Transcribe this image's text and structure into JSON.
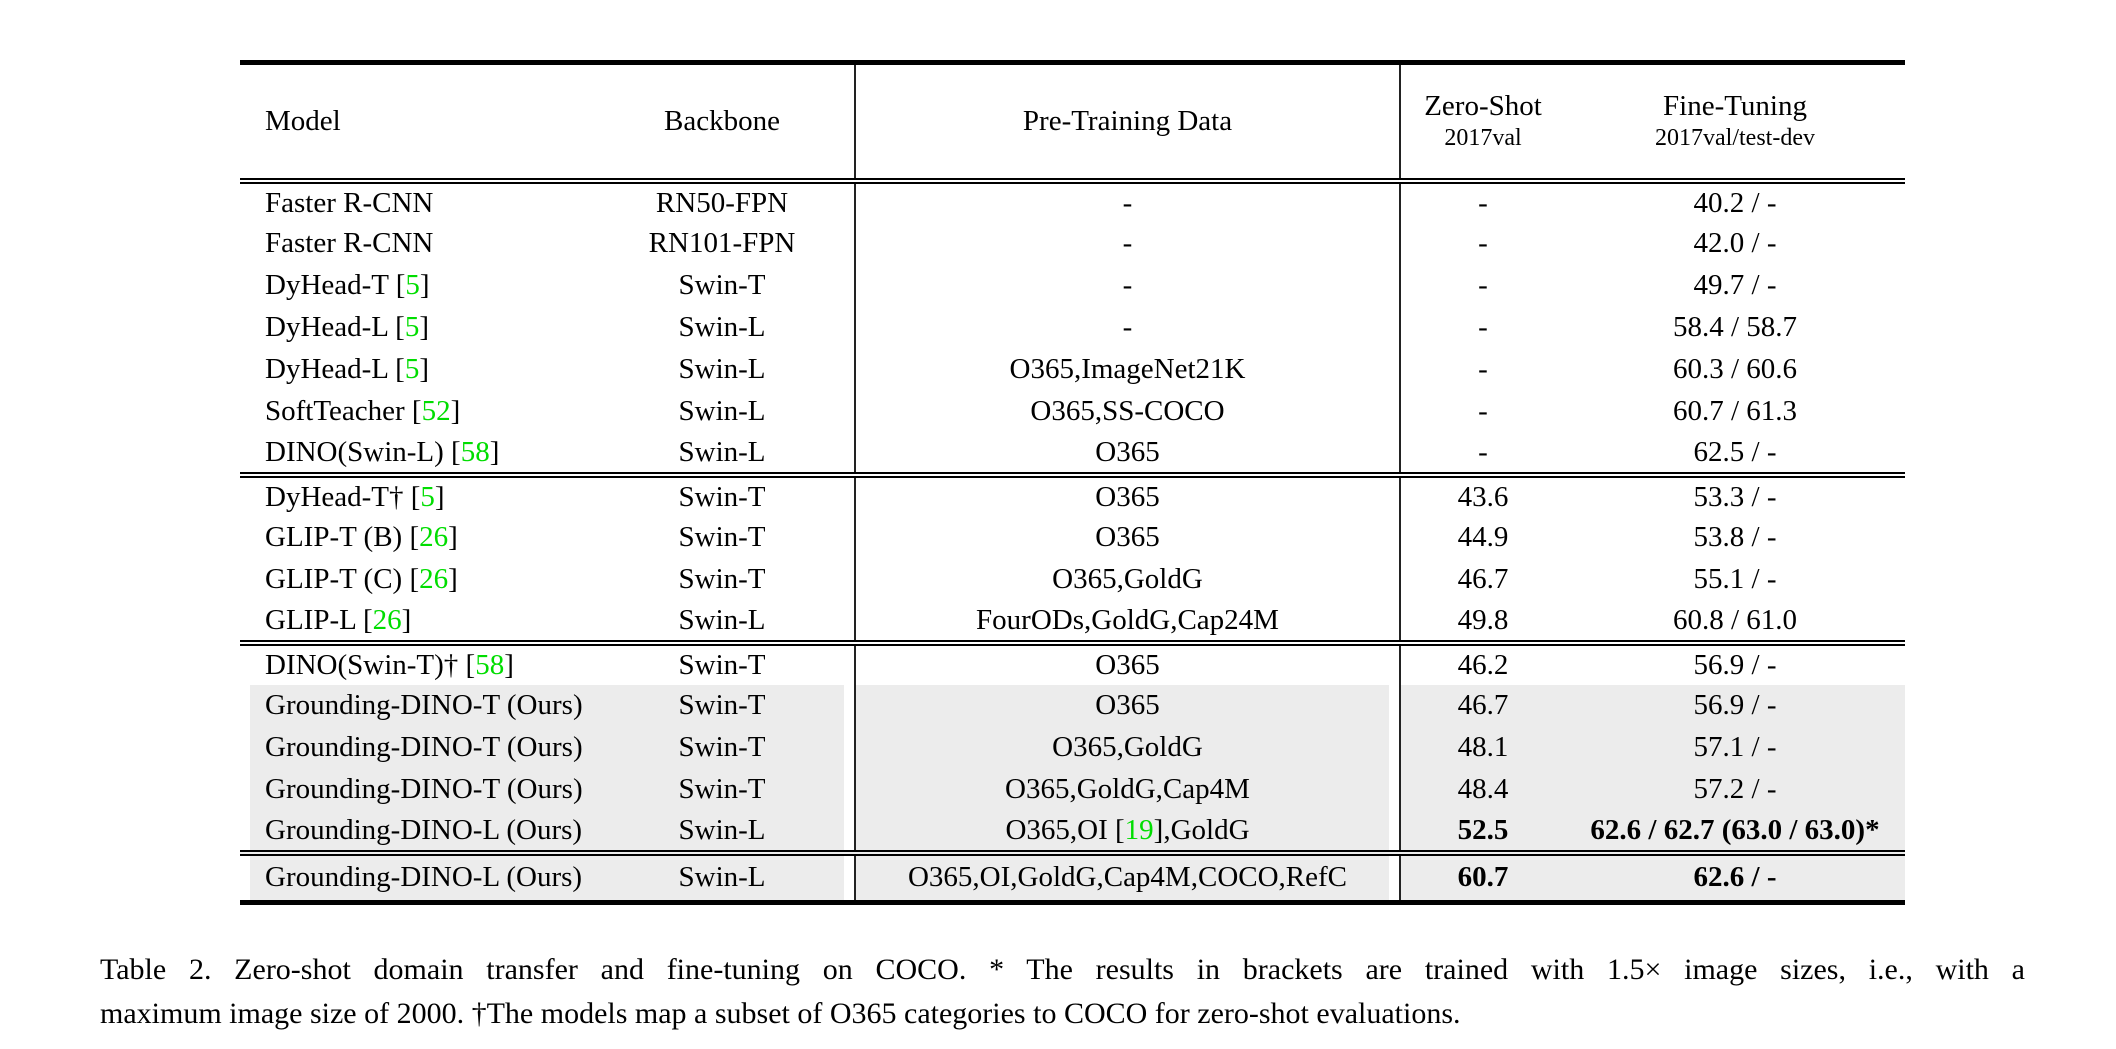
{
  "colors": {
    "citation_green": "#00dd00",
    "row_highlight": "#ececec",
    "rule_black": "#000000"
  },
  "table": {
    "headers": {
      "model": "Model",
      "backbone": "Backbone",
      "pretraining": "Pre-Training Data",
      "zeroshot_title": "Zero-Shot",
      "zeroshot_sub": "2017val",
      "finetuning_title": "Fine-Tuning",
      "finetuning_sub": "2017val/test-dev"
    },
    "groups": [
      {
        "rows": [
          {
            "model": "Faster R-CNN",
            "backbone": "RN50-FPN",
            "pretrain": "-",
            "zs": "-",
            "ft": "40.2 / -",
            "hl": false,
            "zs_bold": false,
            "ft_bold": false
          },
          {
            "model": "Faster R-CNN",
            "backbone": "RN101-FPN",
            "pretrain": "-",
            "zs": "-",
            "ft": "42.0 / -",
            "hl": false,
            "zs_bold": false,
            "ft_bold": false
          },
          {
            "model": "DyHead-T [[5]]",
            "backbone": "Swin-T",
            "pretrain": "-",
            "zs": "-",
            "ft": "49.7 / -",
            "hl": false,
            "zs_bold": false,
            "ft_bold": false
          },
          {
            "model": "DyHead-L [[5]]",
            "backbone": "Swin-L",
            "pretrain": "-",
            "zs": "-",
            "ft": "58.4 / 58.7",
            "hl": false,
            "zs_bold": false,
            "ft_bold": false
          },
          {
            "model": "DyHead-L [[5]]",
            "backbone": "Swin-L",
            "pretrain": "O365,ImageNet21K",
            "zs": "-",
            "ft": "60.3 / 60.6",
            "hl": false,
            "zs_bold": false,
            "ft_bold": false
          },
          {
            "model": "SoftTeacher [[52]]",
            "backbone": "Swin-L",
            "pretrain": "O365,SS-COCO",
            "zs": "-",
            "ft": "60.7 / 61.3",
            "hl": false,
            "zs_bold": false,
            "ft_bold": false
          },
          {
            "model": "DINO(Swin-L) [[58]]",
            "backbone": "Swin-L",
            "pretrain": "O365",
            "zs": "-",
            "ft": "62.5 / -",
            "hl": false,
            "zs_bold": false,
            "ft_bold": false
          }
        ]
      },
      {
        "rows": [
          {
            "model": "DyHead-T† [[5]]",
            "backbone": "Swin-T",
            "pretrain": "O365",
            "zs": "43.6",
            "ft": "53.3 / -",
            "hl": false,
            "zs_bold": false,
            "ft_bold": false
          },
          {
            "model": "GLIP-T (B) [[26]]",
            "backbone": "Swin-T",
            "pretrain": "O365",
            "zs": "44.9",
            "ft": "53.8 / -",
            "hl": false,
            "zs_bold": false,
            "ft_bold": false
          },
          {
            "model": "GLIP-T (C) [[26]]",
            "backbone": "Swin-T",
            "pretrain": "O365,GoldG",
            "zs": "46.7",
            "ft": "55.1 / -",
            "hl": false,
            "zs_bold": false,
            "ft_bold": false
          },
          {
            "model": "GLIP-L [[26]]",
            "backbone": "Swin-L",
            "pretrain": "FourODs,GoldG,Cap24M",
            "zs": "49.8",
            "ft": "60.8 / 61.0",
            "hl": false,
            "zs_bold": false,
            "ft_bold": false
          }
        ]
      },
      {
        "rows": [
          {
            "model": "DINO(Swin-T)† [[58]]",
            "backbone": "Swin-T",
            "pretrain": "O365",
            "zs": "46.2",
            "ft": "56.9 / -",
            "hl": false,
            "zs_bold": false,
            "ft_bold": false
          },
          {
            "model": "Grounding-DINO-T (Ours)",
            "backbone": "Swin-T",
            "pretrain": "O365",
            "zs": "46.7",
            "ft": "56.9 / -",
            "hl": true,
            "zs_bold": false,
            "ft_bold": false
          },
          {
            "model": "Grounding-DINO-T (Ours)",
            "backbone": "Swin-T",
            "pretrain": "O365,GoldG",
            "zs": "48.1",
            "ft": "57.1 / -",
            "hl": true,
            "zs_bold": false,
            "ft_bold": false
          },
          {
            "model": "Grounding-DINO-T (Ours)",
            "backbone": "Swin-T",
            "pretrain": "O365,GoldG,Cap4M",
            "zs": "48.4",
            "ft": "57.2 / -",
            "hl": true,
            "zs_bold": false,
            "ft_bold": false
          },
          {
            "model": "Grounding-DINO-L (Ours)",
            "backbone": "Swin-L",
            "pretrain": "O365,OI [[19]],GoldG",
            "zs": "52.5",
            "ft": "62.6 / 62.7 (63.0 / 63.0)*",
            "hl": true,
            "zs_bold": true,
            "ft_bold": true
          }
        ]
      },
      {
        "rows": [
          {
            "model": "Grounding-DINO-L (Ours)",
            "backbone": "Swin-L",
            "pretrain": "O365,OI,GoldG,Cap4M,COCO,RefC",
            "zs": "60.7",
            "ft": "62.6 / -",
            "hl": true,
            "zs_bold": true,
            "ft_bold": true
          }
        ]
      }
    ]
  },
  "caption": {
    "line1": "Table 2.  Zero-shot domain transfer and fine-tuning on COCO. * The results in brackets are trained with 1.5× image sizes, i.e., with a",
    "line2": "maximum image size of 2000. †The models map a subset of O365 categories to COCO for zero-shot evaluations."
  }
}
